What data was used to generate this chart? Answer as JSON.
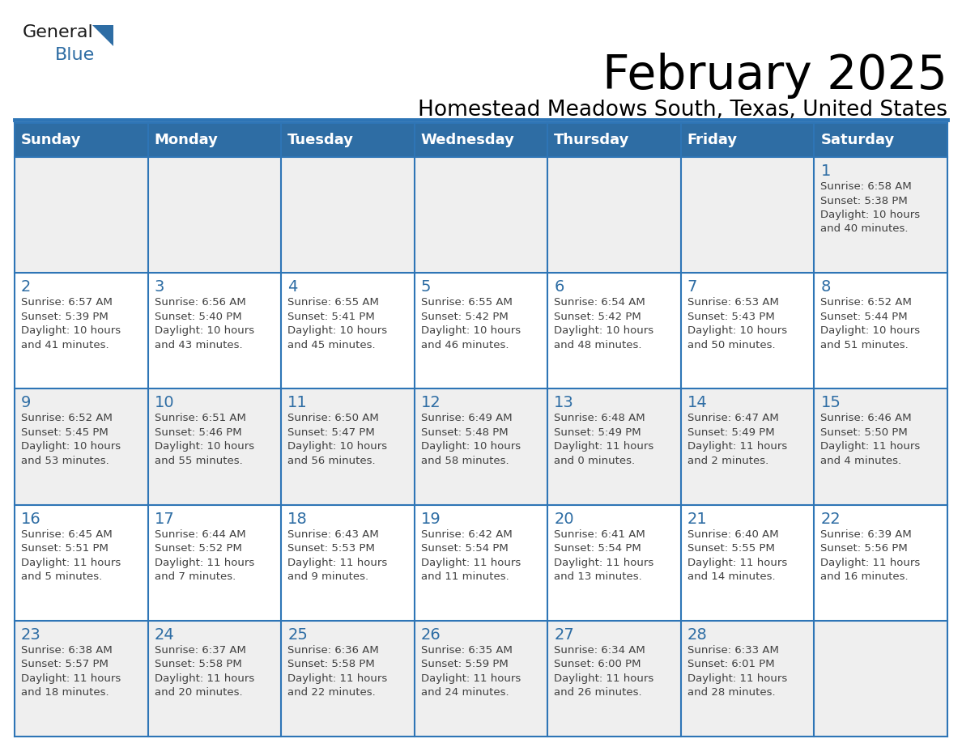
{
  "title": "February 2025",
  "subtitle": "Homestead Meadows South, Texas, United States",
  "header_bg": "#2E6DA4",
  "header_text_color": "#FFFFFF",
  "cell_bg_odd": "#EFEFEF",
  "cell_bg_even": "#FFFFFF",
  "border_color": "#2E75B6",
  "title_color": "#000000",
  "subtitle_color": "#000000",
  "day_number_color": "#2E6DA4",
  "cell_text_color": "#404040",
  "days_of_week": [
    "Sunday",
    "Monday",
    "Tuesday",
    "Wednesday",
    "Thursday",
    "Friday",
    "Saturday"
  ],
  "weeks": [
    [
      {
        "day": "",
        "info": ""
      },
      {
        "day": "",
        "info": ""
      },
      {
        "day": "",
        "info": ""
      },
      {
        "day": "",
        "info": ""
      },
      {
        "day": "",
        "info": ""
      },
      {
        "day": "",
        "info": ""
      },
      {
        "day": "1",
        "info": "Sunrise: 6:58 AM\nSunset: 5:38 PM\nDaylight: 10 hours\nand 40 minutes."
      }
    ],
    [
      {
        "day": "2",
        "info": "Sunrise: 6:57 AM\nSunset: 5:39 PM\nDaylight: 10 hours\nand 41 minutes."
      },
      {
        "day": "3",
        "info": "Sunrise: 6:56 AM\nSunset: 5:40 PM\nDaylight: 10 hours\nand 43 minutes."
      },
      {
        "day": "4",
        "info": "Sunrise: 6:55 AM\nSunset: 5:41 PM\nDaylight: 10 hours\nand 45 minutes."
      },
      {
        "day": "5",
        "info": "Sunrise: 6:55 AM\nSunset: 5:42 PM\nDaylight: 10 hours\nand 46 minutes."
      },
      {
        "day": "6",
        "info": "Sunrise: 6:54 AM\nSunset: 5:42 PM\nDaylight: 10 hours\nand 48 minutes."
      },
      {
        "day": "7",
        "info": "Sunrise: 6:53 AM\nSunset: 5:43 PM\nDaylight: 10 hours\nand 50 minutes."
      },
      {
        "day": "8",
        "info": "Sunrise: 6:52 AM\nSunset: 5:44 PM\nDaylight: 10 hours\nand 51 minutes."
      }
    ],
    [
      {
        "day": "9",
        "info": "Sunrise: 6:52 AM\nSunset: 5:45 PM\nDaylight: 10 hours\nand 53 minutes."
      },
      {
        "day": "10",
        "info": "Sunrise: 6:51 AM\nSunset: 5:46 PM\nDaylight: 10 hours\nand 55 minutes."
      },
      {
        "day": "11",
        "info": "Sunrise: 6:50 AM\nSunset: 5:47 PM\nDaylight: 10 hours\nand 56 minutes."
      },
      {
        "day": "12",
        "info": "Sunrise: 6:49 AM\nSunset: 5:48 PM\nDaylight: 10 hours\nand 58 minutes."
      },
      {
        "day": "13",
        "info": "Sunrise: 6:48 AM\nSunset: 5:49 PM\nDaylight: 11 hours\nand 0 minutes."
      },
      {
        "day": "14",
        "info": "Sunrise: 6:47 AM\nSunset: 5:49 PM\nDaylight: 11 hours\nand 2 minutes."
      },
      {
        "day": "15",
        "info": "Sunrise: 6:46 AM\nSunset: 5:50 PM\nDaylight: 11 hours\nand 4 minutes."
      }
    ],
    [
      {
        "day": "16",
        "info": "Sunrise: 6:45 AM\nSunset: 5:51 PM\nDaylight: 11 hours\nand 5 minutes."
      },
      {
        "day": "17",
        "info": "Sunrise: 6:44 AM\nSunset: 5:52 PM\nDaylight: 11 hours\nand 7 minutes."
      },
      {
        "day": "18",
        "info": "Sunrise: 6:43 AM\nSunset: 5:53 PM\nDaylight: 11 hours\nand 9 minutes."
      },
      {
        "day": "19",
        "info": "Sunrise: 6:42 AM\nSunset: 5:54 PM\nDaylight: 11 hours\nand 11 minutes."
      },
      {
        "day": "20",
        "info": "Sunrise: 6:41 AM\nSunset: 5:54 PM\nDaylight: 11 hours\nand 13 minutes."
      },
      {
        "day": "21",
        "info": "Sunrise: 6:40 AM\nSunset: 5:55 PM\nDaylight: 11 hours\nand 14 minutes."
      },
      {
        "day": "22",
        "info": "Sunrise: 6:39 AM\nSunset: 5:56 PM\nDaylight: 11 hours\nand 16 minutes."
      }
    ],
    [
      {
        "day": "23",
        "info": "Sunrise: 6:38 AM\nSunset: 5:57 PM\nDaylight: 11 hours\nand 18 minutes."
      },
      {
        "day": "24",
        "info": "Sunrise: 6:37 AM\nSunset: 5:58 PM\nDaylight: 11 hours\nand 20 minutes."
      },
      {
        "day": "25",
        "info": "Sunrise: 6:36 AM\nSunset: 5:58 PM\nDaylight: 11 hours\nand 22 minutes."
      },
      {
        "day": "26",
        "info": "Sunrise: 6:35 AM\nSunset: 5:59 PM\nDaylight: 11 hours\nand 24 minutes."
      },
      {
        "day": "27",
        "info": "Sunrise: 6:34 AM\nSunset: 6:00 PM\nDaylight: 11 hours\nand 26 minutes."
      },
      {
        "day": "28",
        "info": "Sunrise: 6:33 AM\nSunset: 6:01 PM\nDaylight: 11 hours\nand 28 minutes."
      },
      {
        "day": "",
        "info": ""
      }
    ]
  ],
  "logo_general_color": "#1a1a1a",
  "logo_blue_color": "#2E6DA4",
  "figsize": [
    11.88,
    9.18
  ],
  "dpi": 100
}
